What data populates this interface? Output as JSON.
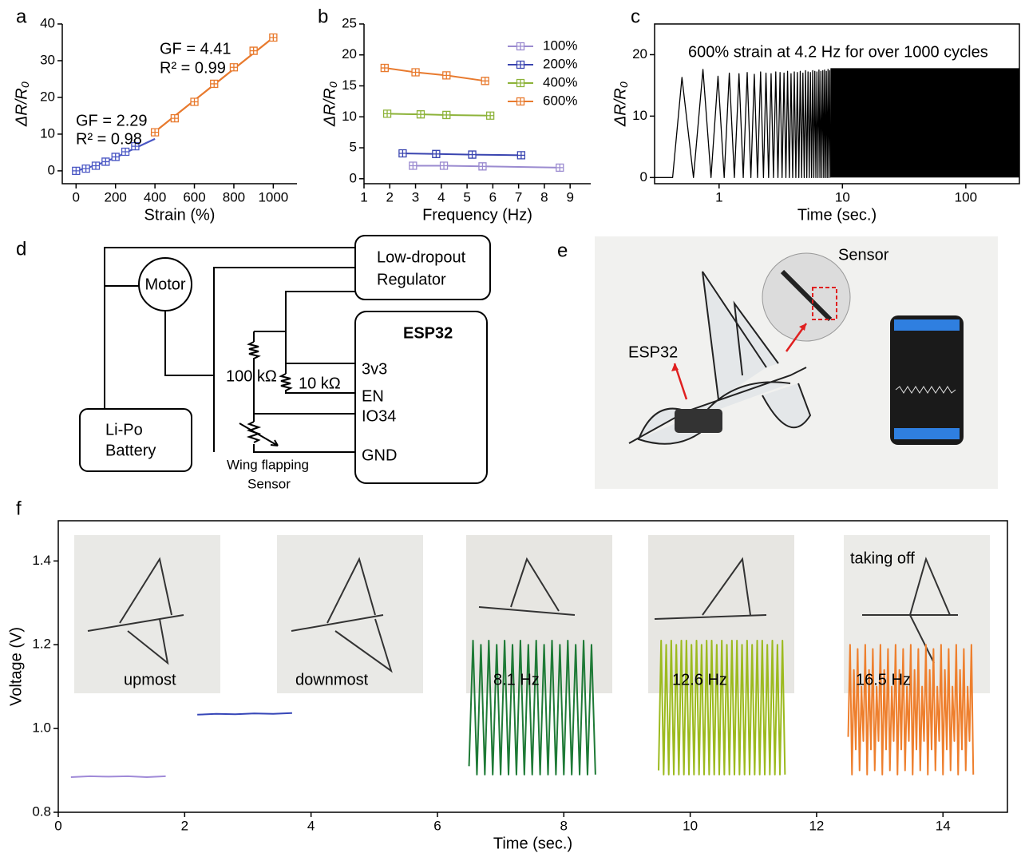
{
  "chart_data": [
    {
      "panel": "a",
      "type": "scatter",
      "xlabel": "Strain (%)",
      "ylabel": "ΔR/R₀",
      "xlim": [
        -70,
        1120
      ],
      "ylim": [
        -3.5,
        40
      ],
      "xticks": [
        0,
        200,
        400,
        600,
        800,
        1000
      ],
      "yticks": [
        0,
        10,
        20,
        30,
        40
      ],
      "series": [
        {
          "color": "#4a57c4",
          "marker": "square",
          "x": [
            0,
            50,
            100,
            150,
            200,
            250,
            300
          ],
          "values": [
            0,
            0.6,
            1.4,
            2.5,
            3.8,
            5.2,
            6.7
          ],
          "fit": {
            "x": [
              0,
              100,
              200,
              300,
              400
            ],
            "values": [
              0,
              1.5,
              3.6,
              6.2,
              8.7
            ]
          }
        },
        {
          "color": "#e8792c",
          "marker": "square",
          "x": [
            400,
            500,
            600,
            700,
            800,
            900,
            1000
          ],
          "values": [
            10.5,
            14.3,
            18.8,
            23.7,
            28.2,
            32.7,
            36.3
          ],
          "fit": {
            "x": [
              380,
              1000
            ],
            "values": [
              9.8,
              36.3
            ]
          }
        }
      ],
      "annotations": [
        {
          "text": "GF = 2.29",
          "color": "#4a57c4"
        },
        {
          "text": "R² = 0.98",
          "color": "#4a57c4"
        },
        {
          "text": "GF = 4.41",
          "color": "#e8792c"
        },
        {
          "text": "R² = 0.99",
          "color": "#e8792c"
        }
      ]
    },
    {
      "panel": "b",
      "type": "line",
      "xlabel": "Frequency (Hz)",
      "ylabel": "ΔR/R₀",
      "xlim": [
        1,
        9.8
      ],
      "ylim": [
        -0.8,
        25
      ],
      "xticks": [
        1,
        2,
        3,
        4,
        5,
        6,
        7,
        8,
        9
      ],
      "yticks": [
        0,
        5,
        10,
        15,
        20,
        25
      ],
      "legend": "upper right",
      "series": [
        {
          "name": "100%",
          "color": "#9b8bd0",
          "marker": "square",
          "x": [
            2.9,
            4.1,
            5.6,
            8.6
          ],
          "values": [
            2.1,
            2.1,
            2.0,
            1.8
          ]
        },
        {
          "name": "200%",
          "color": "#3a45b0",
          "marker": "square",
          "x": [
            2.5,
            3.8,
            5.2,
            7.1
          ],
          "values": [
            4.1,
            4.0,
            3.9,
            3.8
          ]
        },
        {
          "name": "400%",
          "color": "#8db33a",
          "marker": "square",
          "x": [
            1.9,
            3.2,
            4.2,
            5.9
          ],
          "values": [
            10.5,
            10.4,
            10.3,
            10.2
          ]
        },
        {
          "name": "600%",
          "color": "#e87a2e",
          "marker": "square",
          "x": [
            1.8,
            3.0,
            4.2,
            5.7
          ],
          "values": [
            17.9,
            17.2,
            16.7,
            15.8
          ]
        }
      ]
    },
    {
      "panel": "c",
      "type": "line",
      "xlabel": "Time (sec.)",
      "ylabel": "ΔR/R₀",
      "xscale": "log",
      "xlim": [
        0.3,
        272
      ],
      "ylim": [
        -1,
        25
      ],
      "xticks": [
        1,
        10,
        100
      ],
      "yticks": [
        0,
        10,
        20
      ],
      "frame": true,
      "annotations": [
        {
          "text": "600% strain at 4.2 Hz for over 1000 cycles",
          "color": "#000000"
        }
      ],
      "series": [
        {
          "color": "#000000",
          "x": [
            0.3,
            0.42,
            0.5,
            0.62,
            0.74,
            0.86,
            0.98,
            1.1,
            1.21,
            1.33,
            1.45,
            1.57,
            1.69,
            1.81,
            1.93,
            2.05,
            2.17,
            2.29,
            2.4,
            2.52,
            2.64,
            2.76,
            2.88,
            3,
            3.12,
            3.24,
            3.36,
            3.48,
            3.59,
            3.71,
            3.83,
            3.95,
            4.07,
            4.19,
            4.31,
            4.43,
            4.55,
            4.67,
            4.78,
            4.9,
            5.02,
            5.14,
            5.26,
            5.38,
            5.5,
            5.62,
            5.74,
            5.86,
            5.97,
            6.09,
            6.21,
            6.33,
            6.45,
            6.57,
            6.69,
            6.81,
            6.93,
            7.05,
            7.16,
            7.28,
            7.4,
            7.52,
            7.64,
            7.76,
            7.88,
            8
          ],
          "values": [
            0,
            0,
            16.3,
            0,
            17.6,
            0,
            16.5,
            0,
            17,
            0,
            16.9,
            0,
            17.1,
            0,
            16.8,
            0,
            17.2,
            0,
            17,
            0,
            16.9,
            0,
            17.2,
            0,
            17.1,
            0,
            17,
            0,
            17.3,
            0,
            16.9,
            0,
            17.2,
            0,
            17.1,
            0,
            17.3,
            0,
            17,
            0,
            17.4,
            0,
            17.2,
            0,
            17.1,
            0,
            17.4,
            0,
            17.3,
            0,
            17.2,
            0,
            17.5,
            0,
            17.3,
            0,
            17.4,
            0,
            17.5,
            0,
            17.3,
            0,
            17.6,
            0,
            17.4,
            0
          ]
        }
      ],
      "band": {
        "color": "#000000",
        "x": [
          8,
          272
        ],
        "upper": [
          17.8,
          17.8
        ],
        "lower": [
          0,
          0
        ]
      }
    },
    {
      "panel": "f",
      "type": "line",
      "xlabel": "Time (sec.)",
      "ylabel": "Voltage (V)",
      "xlim": [
        0,
        15.02
      ],
      "ylim": [
        0.8,
        1.496
      ],
      "xticks": [
        0,
        2,
        4,
        6,
        8,
        10,
        12,
        14
      ],
      "yticks": [
        0.8,
        {
          "value": 1,
          "label": "1.0"
        },
        1.2,
        1.4
      ],
      "frame": true,
      "annotations": [
        {
          "text": "upmost",
          "color": "#000000"
        },
        {
          "text": "downmost",
          "color": "#000000"
        },
        {
          "text": "8.1 Hz",
          "color": "#000000"
        },
        {
          "text": "12.6 Hz",
          "color": "#000000"
        },
        {
          "text": "16.5 Hz",
          "color": "#000000"
        },
        {
          "text": "taking off",
          "color": "#000000"
        }
      ],
      "series": [
        {
          "color": "#a08ad8",
          "x": [
            0.2,
            0.5,
            0.8,
            1.1,
            1.4,
            1.7
          ],
          "values": [
            0.884,
            0.886,
            0.885,
            0.886,
            0.884,
            0.886
          ]
        },
        {
          "color": "#3747b8",
          "x": [
            2.2,
            2.5,
            2.8,
            3.1,
            3.4,
            3.7
          ],
          "values": [
            1.033,
            1.035,
            1.034,
            1.036,
            1.035,
            1.037
          ]
        },
        {
          "color": "#1e7a36",
          "x": [
            6.5,
            6.563,
            6.625,
            6.688,
            6.75,
            6.813,
            6.875,
            6.938,
            7,
            7.063,
            7.125,
            7.188,
            7.25,
            7.313,
            7.375,
            7.438,
            7.5,
            7.563,
            7.625,
            7.688,
            7.75,
            7.813,
            7.875,
            7.938,
            8,
            8.063,
            8.125,
            8.188,
            8.25,
            8.313,
            8.375,
            8.438,
            8.5
          ],
          "values": [
            0.91,
            1.21,
            0.89,
            1.2,
            0.89,
            1.21,
            0.89,
            1.2,
            0.89,
            1.21,
            0.89,
            1.2,
            0.89,
            1.21,
            0.89,
            1.2,
            0.89,
            1.21,
            0.89,
            1.2,
            0.89,
            1.21,
            0.89,
            1.2,
            0.89,
            1.21,
            0.89,
            1.2,
            0.89,
            1.21,
            0.89,
            1.2,
            0.89
          ]
        },
        {
          "color": "#9cba1e",
          "x": [
            9.5,
            9.54,
            9.58,
            9.62,
            9.66,
            9.7,
            9.74,
            9.78,
            9.82,
            9.86,
            9.9,
            9.94,
            9.98,
            10.02,
            10.06,
            10.1,
            10.14,
            10.18,
            10.22,
            10.26,
            10.3,
            10.34,
            10.38,
            10.42,
            10.46,
            10.5,
            10.54,
            10.58,
            10.62,
            10.66,
            10.7,
            10.74,
            10.78,
            10.82,
            10.86,
            10.9,
            10.94,
            10.98,
            11.02,
            11.06,
            11.1,
            11.14,
            11.18,
            11.22,
            11.26,
            11.3,
            11.34,
            11.38,
            11.42,
            11.46,
            11.5
          ],
          "values": [
            0.9,
            1.21,
            0.89,
            1.2,
            0.89,
            1.21,
            0.89,
            1.2,
            0.89,
            1.21,
            0.89,
            1.21,
            0.89,
            1.2,
            0.89,
            1.21,
            0.89,
            1.2,
            0.89,
            1.21,
            0.89,
            1.21,
            0.89,
            1.2,
            0.89,
            1.21,
            0.89,
            1.2,
            0.89,
            1.21,
            0.89,
            1.21,
            0.89,
            1.2,
            0.89,
            1.21,
            0.89,
            1.2,
            0.89,
            1.21,
            0.89,
            1.21,
            0.89,
            1.2,
            0.89,
            1.21,
            0.89,
            1.2,
            0.89,
            1.21,
            0.89
          ]
        },
        {
          "color": "#ee7f2d",
          "x": [
            12.5,
            12.53,
            12.56,
            12.59,
            12.62,
            12.65,
            12.68,
            12.71,
            12.74,
            12.77,
            12.8,
            12.83,
            12.86,
            12.89,
            12.92,
            12.95,
            12.98,
            13.01,
            13.04,
            13.07,
            13.1,
            13.13,
            13.16,
            13.19,
            13.22,
            13.25,
            13.28,
            13.31,
            13.34,
            13.37,
            13.4,
            13.43,
            13.46,
            13.49,
            13.52,
            13.55,
            13.58,
            13.61,
            13.64,
            13.67,
            13.7,
            13.73,
            13.76,
            13.79,
            13.82,
            13.85,
            13.88,
            13.91,
            13.94,
            13.97,
            14,
            14.03,
            14.06,
            14.09,
            14.12,
            14.15,
            14.18,
            14.21,
            14.24,
            14.27,
            14.3,
            14.33,
            14.36,
            14.39,
            14.42,
            14.45,
            14.48
          ],
          "values": [
            0.98,
            1.2,
            0.89,
            1.14,
            0.95,
            1.19,
            0.9,
            1.1,
            0.97,
            1.2,
            0.89,
            1.14,
            0.95,
            1.19,
            0.9,
            1.1,
            0.97,
            1.2,
            0.89,
            1.14,
            0.95,
            1.19,
            0.9,
            1.1,
            0.97,
            1.2,
            0.89,
            1.14,
            0.95,
            1.19,
            0.9,
            1.1,
            0.97,
            1.2,
            0.89,
            1.14,
            0.95,
            1.19,
            0.9,
            1.1,
            0.97,
            1.2,
            0.89,
            1.14,
            0.95,
            1.19,
            0.9,
            1.1,
            0.97,
            1.2,
            0.89,
            1.14,
            0.95,
            1.19,
            0.9,
            1.1,
            0.97,
            1.2,
            0.89,
            1.14,
            0.95,
            1.19,
            0.9,
            1.1,
            0.97,
            1.2,
            0.89
          ]
        }
      ]
    }
  ],
  "diagram": {
    "panel": "d",
    "motor": "Motor",
    "regulator": [
      "Low-dropout",
      "Regulator"
    ],
    "mcu": "ESP32",
    "pins": [
      "3v3",
      "EN",
      "IO34",
      "GND"
    ],
    "resistors": [
      "100 kΩ",
      "10 kΩ"
    ],
    "battery": [
      "Li-Po",
      "Battery"
    ],
    "sensor": [
      "Wing flapping",
      "Sensor"
    ]
  },
  "photo": {
    "panel": "e",
    "labels": [
      "Sensor",
      "ESP32"
    ]
  }
}
